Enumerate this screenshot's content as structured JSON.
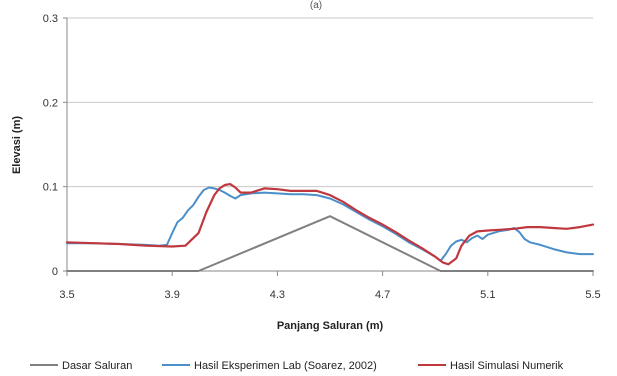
{
  "chart_data": {
    "type": "line",
    "title": "",
    "top_marker": "(a)",
    "xlabel": "Panjang Saluran (m)",
    "ylabel": "Elevasi (m)",
    "xlim": [
      3.5,
      5.5
    ],
    "ylim": [
      0,
      0.3
    ],
    "x_ticks": [
      "3.5",
      "3.9",
      "4.3",
      "4.7",
      "5.1",
      "5.5"
    ],
    "y_ticks": [
      "0",
      "0.1",
      "0.2",
      "0.3"
    ],
    "x_tick_values": [
      3.5,
      3.9,
      4.3,
      4.7,
      5.1,
      5.5
    ],
    "y_tick_values": [
      0,
      0.1,
      0.2,
      0.3
    ],
    "grid": "horizontal",
    "legend_position": "bottom",
    "series": [
      {
        "name": "Dasar Saluran",
        "color": "#808080",
        "points": [
          [
            3.5,
            0
          ],
          [
            4.0,
            0
          ],
          [
            4.5,
            0.065
          ],
          [
            4.92,
            0
          ],
          [
            5.5,
            0
          ]
        ]
      },
      {
        "name": "Hasil Eksperimen Lab (Soarez, 2002)",
        "color": "#4a8fc9",
        "points": [
          [
            3.5,
            0.033
          ],
          [
            3.6,
            0.033
          ],
          [
            3.7,
            0.032
          ],
          [
            3.8,
            0.031
          ],
          [
            3.85,
            0.03
          ],
          [
            3.88,
            0.031
          ],
          [
            3.9,
            0.045
          ],
          [
            3.92,
            0.058
          ],
          [
            3.94,
            0.063
          ],
          [
            3.96,
            0.072
          ],
          [
            3.98,
            0.078
          ],
          [
            4.0,
            0.088
          ],
          [
            4.02,
            0.096
          ],
          [
            4.04,
            0.099
          ],
          [
            4.06,
            0.098
          ],
          [
            4.08,
            0.096
          ],
          [
            4.1,
            0.093
          ],
          [
            4.12,
            0.089
          ],
          [
            4.14,
            0.086
          ],
          [
            4.16,
            0.09
          ],
          [
            4.2,
            0.092
          ],
          [
            4.25,
            0.093
          ],
          [
            4.3,
            0.092
          ],
          [
            4.35,
            0.091
          ],
          [
            4.4,
            0.091
          ],
          [
            4.45,
            0.09
          ],
          [
            4.5,
            0.086
          ],
          [
            4.55,
            0.079
          ],
          [
            4.6,
            0.07
          ],
          [
            4.65,
            0.061
          ],
          [
            4.7,
            0.053
          ],
          [
            4.75,
            0.044
          ],
          [
            4.8,
            0.034
          ],
          [
            4.85,
            0.026
          ],
          [
            4.9,
            0.017
          ],
          [
            4.92,
            0.012
          ],
          [
            4.94,
            0.02
          ],
          [
            4.96,
            0.03
          ],
          [
            4.98,
            0.035
          ],
          [
            5.0,
            0.037
          ],
          [
            5.02,
            0.034
          ],
          [
            5.04,
            0.039
          ],
          [
            5.06,
            0.042
          ],
          [
            5.08,
            0.038
          ],
          [
            5.1,
            0.043
          ],
          [
            5.12,
            0.045
          ],
          [
            5.14,
            0.047
          ],
          [
            5.16,
            0.048
          ],
          [
            5.18,
            0.049
          ],
          [
            5.2,
            0.051
          ],
          [
            5.22,
            0.046
          ],
          [
            5.24,
            0.038
          ],
          [
            5.26,
            0.034
          ],
          [
            5.3,
            0.031
          ],
          [
            5.35,
            0.026
          ],
          [
            5.4,
            0.022
          ],
          [
            5.45,
            0.02
          ],
          [
            5.5,
            0.02
          ]
        ]
      },
      {
        "name": "Hasil Simulasi Numerik",
        "color": "#c0383f",
        "points": [
          [
            3.5,
            0.034
          ],
          [
            3.6,
            0.033
          ],
          [
            3.7,
            0.032
          ],
          [
            3.8,
            0.03
          ],
          [
            3.9,
            0.029
          ],
          [
            3.95,
            0.03
          ],
          [
            4.0,
            0.045
          ],
          [
            4.03,
            0.07
          ],
          [
            4.06,
            0.09
          ],
          [
            4.08,
            0.098
          ],
          [
            4.1,
            0.102
          ],
          [
            4.12,
            0.103
          ],
          [
            4.14,
            0.099
          ],
          [
            4.16,
            0.093
          ],
          [
            4.2,
            0.093
          ],
          [
            4.25,
            0.098
          ],
          [
            4.3,
            0.097
          ],
          [
            4.35,
            0.095
          ],
          [
            4.4,
            0.095
          ],
          [
            4.45,
            0.095
          ],
          [
            4.5,
            0.09
          ],
          [
            4.55,
            0.082
          ],
          [
            4.6,
            0.072
          ],
          [
            4.65,
            0.063
          ],
          [
            4.7,
            0.055
          ],
          [
            4.75,
            0.046
          ],
          [
            4.8,
            0.036
          ],
          [
            4.85,
            0.027
          ],
          [
            4.9,
            0.017
          ],
          [
            4.93,
            0.01
          ],
          [
            4.95,
            0.008
          ],
          [
            4.98,
            0.015
          ],
          [
            5.0,
            0.03
          ],
          [
            5.03,
            0.042
          ],
          [
            5.06,
            0.047
          ],
          [
            5.1,
            0.048
          ],
          [
            5.15,
            0.049
          ],
          [
            5.2,
            0.05
          ],
          [
            5.25,
            0.052
          ],
          [
            5.3,
            0.052
          ],
          [
            5.35,
            0.051
          ],
          [
            5.4,
            0.05
          ],
          [
            5.45,
            0.052
          ],
          [
            5.5,
            0.055
          ]
        ]
      }
    ]
  }
}
